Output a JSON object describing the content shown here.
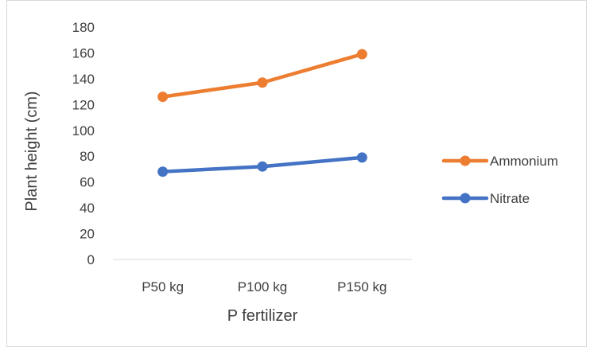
{
  "chart_data": {
    "type": "line",
    "title": "",
    "xlabel": "P fertilizer",
    "ylabel": "Plant height (cm)",
    "categories": [
      "P50 kg",
      "P100 kg",
      "P150 kg"
    ],
    "ylim": [
      0,
      180
    ],
    "yticks": [
      0,
      20,
      40,
      60,
      80,
      100,
      120,
      140,
      160,
      180
    ],
    "grid": false,
    "legend_position": "right",
    "series": [
      {
        "name": "Ammonium",
        "values": [
          126,
          137,
          159
        ],
        "color": "#ED7D31"
      },
      {
        "name": "Nitrate",
        "values": [
          68,
          72,
          79
        ],
        "color": "#4472C4"
      }
    ]
  }
}
